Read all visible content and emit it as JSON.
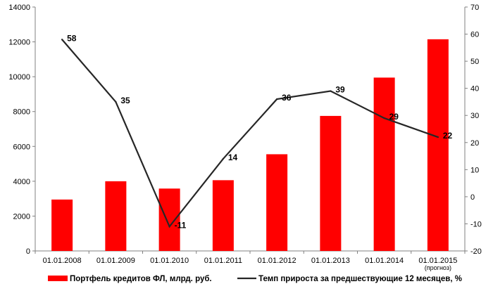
{
  "chart_data": {
    "type": "bar+line",
    "categories": [
      "01.01.2008",
      "01.01.2009",
      "01.01.2010",
      "01.01.2011",
      "01.01.2012",
      "01.01.2013",
      "01.01.2014",
      "01.01.2015"
    ],
    "category_notes": [
      "",
      "",
      "",
      "",
      "",
      "",
      "",
      "(прогноз)"
    ],
    "series": [
      {
        "name": "Портфель кредитов ФЛ, млрд. руб.",
        "type": "bar",
        "axis": "left",
        "color": "#ff0000",
        "values": [
          2950,
          4000,
          3580,
          4060,
          5550,
          7750,
          9950,
          12150
        ]
      },
      {
        "name": "Темп прироста за предшествующие 12 месяцев, %",
        "type": "line",
        "axis": "right",
        "color": "#262626",
        "values": [
          58,
          35,
          -11,
          14,
          36,
          39,
          29,
          22
        ],
        "labels": [
          "58",
          "35",
          "-11",
          "14",
          "36",
          "39",
          "29",
          "22"
        ]
      }
    ],
    "y_left": {
      "min": 0,
      "max": 14000,
      "ticks": [
        "0",
        "2000",
        "4000",
        "6000",
        "8000",
        "10000",
        "12000",
        "14000"
      ]
    },
    "y_right": {
      "min": -20,
      "max": 70,
      "ticks": [
        "-20",
        "-10",
        "0",
        "10",
        "20",
        "30",
        "40",
        "50",
        "60",
        "70"
      ]
    },
    "grid": false,
    "legend_position": "bottom"
  }
}
